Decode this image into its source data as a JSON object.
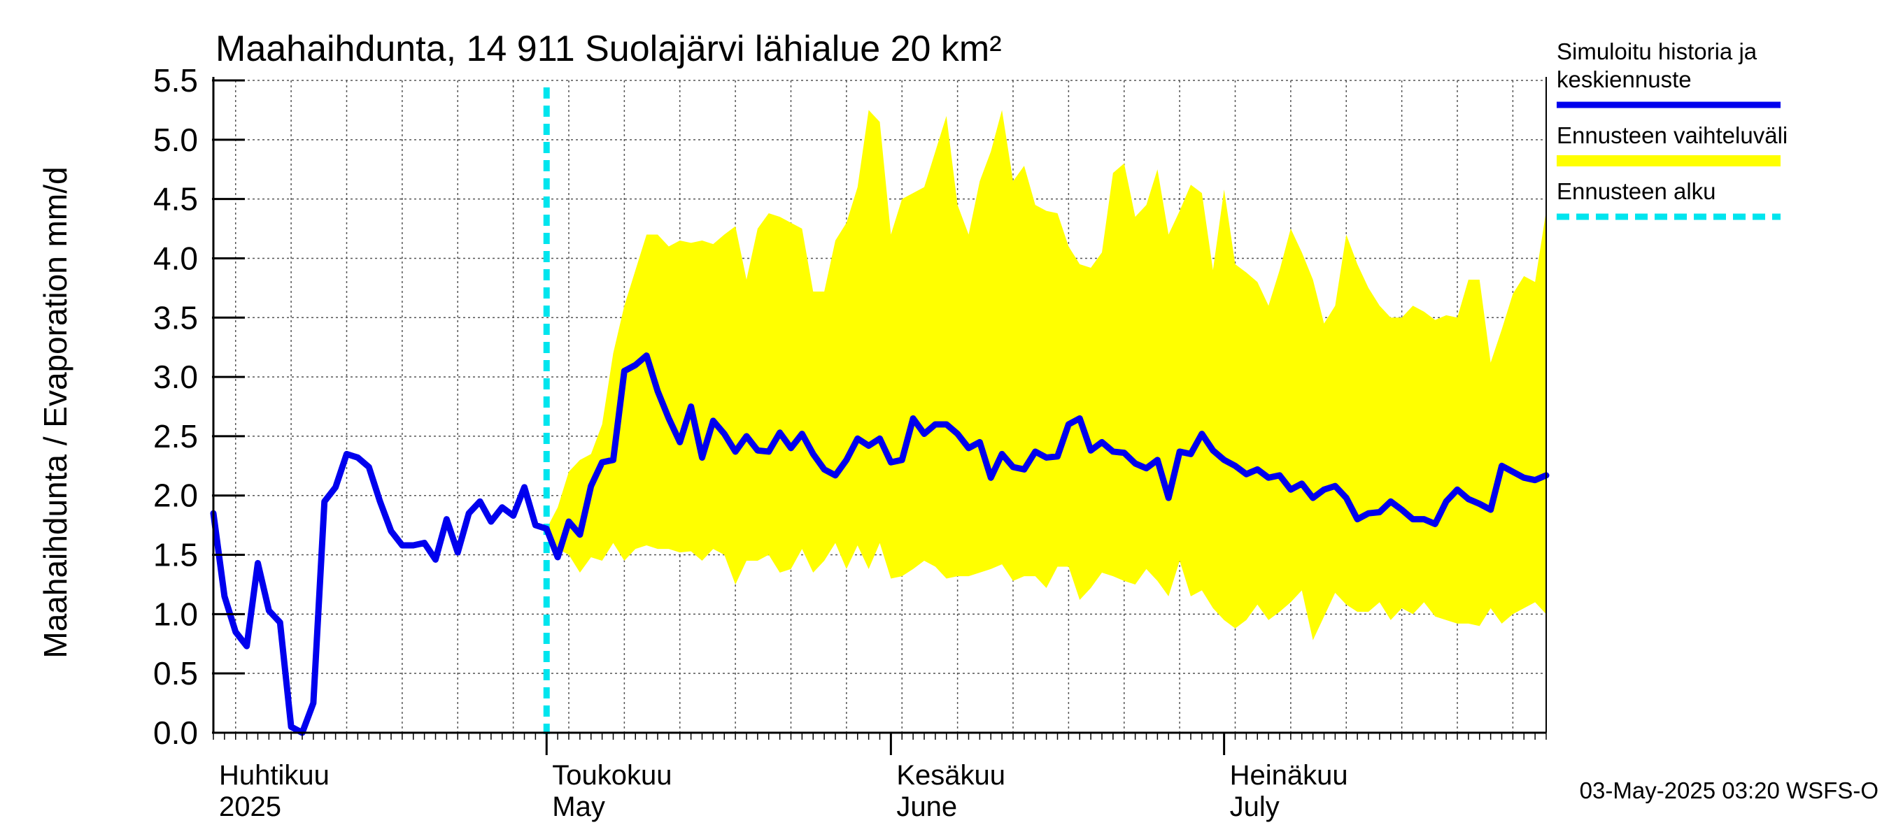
{
  "chart_data": {
    "type": "line",
    "title": "Maahaihdunta, 14 911 Suolajärvi lähialue 20 km²",
    "ylabel": "Maahaihdunta / Evaporation   mm/d",
    "ylim": [
      0.0,
      5.5
    ],
    "yticks": [
      "0.0",
      "0.5",
      "1.0",
      "1.5",
      "2.0",
      "2.5",
      "3.0",
      "3.5",
      "4.0",
      "4.5",
      "5.0",
      "5.5"
    ],
    "x_range_days": [
      0,
      120
    ],
    "forecast_start_day": 30,
    "month_labels": [
      {
        "fi": "Huhtikuu",
        "en": "2025",
        "day": 0
      },
      {
        "fi": "Toukokuu",
        "en": "May",
        "day": 30
      },
      {
        "fi": "Kesäkuu",
        "en": "June",
        "day": 61
      },
      {
        "fi": "Heinäkuu",
        "en": "July",
        "day": 91
      }
    ],
    "week_lines_days": [
      2,
      7,
      12,
      17,
      22,
      27,
      32,
      37,
      42,
      47,
      52,
      57,
      62,
      67,
      72,
      77,
      82,
      87,
      92,
      97,
      102,
      107,
      112,
      117
    ],
    "series": [
      {
        "name": "Simuloitu historia ja keskiennuste",
        "color": "#0000ee",
        "x": [
          0,
          1,
          2,
          3,
          4,
          5,
          6,
          7,
          8,
          9,
          10,
          11,
          12,
          13,
          14,
          15,
          16,
          17,
          18,
          19,
          20,
          21,
          22,
          23,
          24,
          25,
          26,
          27,
          28,
          29,
          30,
          31,
          32,
          33,
          34,
          35,
          36,
          37,
          38,
          39,
          40,
          41,
          42,
          43,
          44,
          45,
          46,
          47,
          48,
          49,
          50,
          51,
          52,
          53,
          54,
          55,
          56,
          57,
          58,
          59,
          60,
          61,
          62,
          63,
          64,
          65,
          66,
          67,
          68,
          69,
          70,
          71,
          72,
          73,
          74,
          75,
          76,
          77,
          78,
          79,
          80,
          81,
          82,
          83,
          84,
          85,
          86,
          87,
          88,
          89,
          90,
          91,
          92,
          93,
          94,
          95,
          96,
          97,
          98,
          99,
          100,
          101,
          102,
          103,
          104,
          105,
          106,
          107,
          108,
          109,
          110,
          111,
          112,
          113,
          114,
          115,
          116,
          117,
          118,
          119,
          120
        ],
        "values": [
          1.85,
          1.15,
          0.85,
          0.73,
          1.43,
          1.03,
          0.93,
          0.05,
          0.0,
          0.25,
          1.95,
          2.07,
          2.35,
          2.32,
          2.24,
          1.95,
          1.7,
          1.58,
          1.58,
          1.6,
          1.46,
          1.8,
          1.52,
          1.85,
          1.95,
          1.78,
          1.9,
          1.83,
          2.07,
          1.75,
          1.72,
          1.48,
          1.78,
          1.67,
          2.08,
          2.28,
          2.3,
          3.05,
          3.1,
          3.18,
          2.88,
          2.65,
          2.45,
          2.75,
          2.32,
          2.63,
          2.52,
          2.37,
          2.5,
          2.38,
          2.37,
          2.53,
          2.4,
          2.52,
          2.35,
          2.22,
          2.17,
          2.3,
          2.48,
          2.42,
          2.48,
          2.28,
          2.3,
          2.65,
          2.52,
          2.6,
          2.6,
          2.52,
          2.4,
          2.45,
          2.15,
          2.35,
          2.24,
          2.22,
          2.37,
          2.32,
          2.33,
          2.6,
          2.65,
          2.38,
          2.45,
          2.37,
          2.36,
          2.27,
          2.23,
          2.3,
          1.98,
          2.37,
          2.35,
          2.52,
          2.38,
          2.3,
          2.25,
          2.18,
          2.22,
          2.15,
          2.17,
          2.05,
          2.1,
          1.98,
          2.05,
          2.08,
          1.98,
          1.8,
          1.85,
          1.86,
          1.95,
          1.88,
          1.8,
          1.8,
          1.76,
          1.95,
          2.05,
          1.97,
          1.93,
          1.88,
          2.25,
          2.2,
          2.15,
          2.13,
          2.17
        ]
      },
      {
        "name": "Ennusteen vaihteluväli",
        "color": "#ffff00",
        "x": [
          30,
          31,
          32,
          33,
          34,
          35,
          36,
          37,
          38,
          39,
          40,
          41,
          42,
          43,
          44,
          45,
          46,
          47,
          48,
          49,
          50,
          51,
          52,
          53,
          54,
          55,
          56,
          57,
          58,
          59,
          60,
          61,
          62,
          63,
          64,
          65,
          66,
          67,
          68,
          69,
          70,
          71,
          72,
          73,
          74,
          75,
          76,
          77,
          78,
          79,
          80,
          81,
          82,
          83,
          84,
          85,
          86,
          87,
          88,
          89,
          90,
          91,
          92,
          93,
          94,
          95,
          96,
          97,
          98,
          99,
          100,
          101,
          102,
          103,
          104,
          105,
          106,
          107,
          108,
          109,
          110,
          111,
          112,
          113,
          114,
          115,
          116,
          117,
          118,
          119,
          120
        ],
        "upper": [
          1.72,
          1.9,
          2.2,
          2.3,
          2.35,
          2.6,
          3.2,
          3.6,
          3.9,
          4.2,
          4.2,
          4.1,
          4.15,
          4.13,
          4.15,
          4.12,
          4.2,
          4.27,
          3.82,
          4.25,
          4.38,
          4.35,
          4.3,
          4.25,
          3.72,
          3.72,
          4.15,
          4.3,
          4.6,
          5.25,
          5.15,
          4.2,
          4.5,
          4.55,
          4.6,
          4.9,
          5.2,
          4.45,
          4.2,
          4.65,
          4.9,
          5.25,
          4.65,
          4.78,
          4.45,
          4.4,
          4.38,
          4.1,
          3.95,
          3.92,
          4.05,
          4.72,
          4.8,
          4.35,
          4.45,
          4.75,
          4.2,
          4.4,
          4.62,
          4.55,
          3.9,
          4.58,
          3.95,
          3.88,
          3.8,
          3.6,
          3.9,
          4.25,
          4.05,
          3.82,
          3.45,
          3.6,
          4.2,
          3.95,
          3.75,
          3.6,
          3.5,
          3.5,
          3.6,
          3.55,
          3.48,
          3.52,
          3.5,
          3.82,
          3.82,
          3.12,
          3.4,
          3.7,
          3.85,
          3.8,
          4.4
        ],
        "lower": [
          1.72,
          1.55,
          1.5,
          1.35,
          1.48,
          1.45,
          1.6,
          1.45,
          1.55,
          1.58,
          1.55,
          1.55,
          1.52,
          1.53,
          1.45,
          1.55,
          1.5,
          1.25,
          1.45,
          1.45,
          1.5,
          1.35,
          1.38,
          1.55,
          1.35,
          1.45,
          1.6,
          1.38,
          1.58,
          1.38,
          1.6,
          1.3,
          1.32,
          1.38,
          1.45,
          1.4,
          1.3,
          1.32,
          1.32,
          1.35,
          1.38,
          1.42,
          1.28,
          1.32,
          1.32,
          1.22,
          1.4,
          1.4,
          1.12,
          1.22,
          1.35,
          1.32,
          1.28,
          1.25,
          1.38,
          1.28,
          1.15,
          1.45,
          1.15,
          1.2,
          1.05,
          0.95,
          0.88,
          0.95,
          1.08,
          0.95,
          1.02,
          1.1,
          1.2,
          0.78,
          0.98,
          1.18,
          1.08,
          1.02,
          1.02,
          1.1,
          0.95,
          1.05,
          1.0,
          1.1,
          0.98,
          0.95,
          0.92,
          0.92,
          0.9,
          1.05,
          0.92,
          1.0,
          1.05,
          1.1,
          1.0
        ]
      }
    ],
    "legend": [
      {
        "label_lines": [
          "Simuloitu historia ja",
          "keskiennuste"
        ],
        "color": "#0000ee",
        "style": "solid"
      },
      {
        "label_lines": [
          "Ennusteen vaihteluväli"
        ],
        "color": "#ffff00",
        "style": "solid"
      },
      {
        "label_lines": [
          "Ennusteen alku"
        ],
        "color": "#00e5ee",
        "style": "dashed"
      }
    ],
    "timestamp": "03-May-2025 03:20 WSFS-O"
  }
}
